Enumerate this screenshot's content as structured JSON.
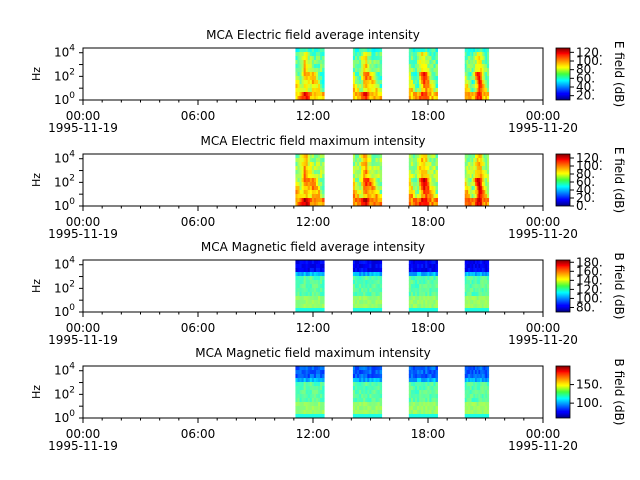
{
  "chart_data": [
    {
      "type": "heatmap",
      "title": "MCA  Electric field average intensity",
      "ylabel": "Hz",
      "y_scale": "log",
      "y_ticks": [
        {
          "exp": "0"
        },
        {
          "exp": "2"
        },
        {
          "exp": "4"
        }
      ],
      "x_ticks": [
        {
          "time": "00:00",
          "date": "1995-11-19"
        },
        {
          "time": "06:00",
          "date": ""
        },
        {
          "time": "12:00",
          "date": ""
        },
        {
          "time": "18:00",
          "date": ""
        },
        {
          "time": "00:00",
          "date": "1995-11-20"
        }
      ],
      "x_range": [
        "1995-11-19 00:00",
        "1995-11-20 00:00"
      ],
      "colorbar": {
        "label": "E field (dB)",
        "ticks": [
          "20.",
          "40.",
          "60.",
          "80.",
          "100.",
          "120."
        ],
        "range": [
          10,
          130
        ],
        "colormap": "jet"
      },
      "data_segments": [
        {
          "start": "1995-11-19 11:05",
          "end": "1995-11-19 12:35"
        },
        {
          "start": "1995-11-19 14:05",
          "end": "1995-11-19 15:35"
        },
        {
          "start": "1995-11-19 17:00",
          "end": "1995-11-19 18:30"
        },
        {
          "start": "1995-11-19 19:55",
          "end": "1995-11-19 21:10"
        }
      ],
      "profile": "electric_avg"
    },
    {
      "type": "heatmap",
      "title": "MCA  Electric field maximum intensity",
      "ylabel": "Hz",
      "y_scale": "log",
      "y_ticks": [
        {
          "exp": "0"
        },
        {
          "exp": "2"
        },
        {
          "exp": "4"
        }
      ],
      "x_ticks": [
        {
          "time": "00:00",
          "date": "1995-11-19"
        },
        {
          "time": "06:00",
          "date": ""
        },
        {
          "time": "12:00",
          "date": ""
        },
        {
          "time": "18:00",
          "date": ""
        },
        {
          "time": "00:00",
          "date": "1995-11-20"
        }
      ],
      "x_range": [
        "1995-11-19 00:00",
        "1995-11-20 00:00"
      ],
      "colorbar": {
        "label": "E field (dB)",
        "ticks": [
          "0.",
          "20.",
          "40.",
          "60.",
          "80.",
          "100.",
          "120."
        ],
        "range": [
          0,
          130
        ],
        "colormap": "jet"
      },
      "data_segments": [
        {
          "start": "1995-11-19 11:05",
          "end": "1995-11-19 12:35"
        },
        {
          "start": "1995-11-19 14:05",
          "end": "1995-11-19 15:35"
        },
        {
          "start": "1995-11-19 17:00",
          "end": "1995-11-19 18:30"
        },
        {
          "start": "1995-11-19 19:55",
          "end": "1995-11-19 21:10"
        }
      ],
      "profile": "electric_max"
    },
    {
      "type": "heatmap",
      "title": "MCA  Magnetic field average intensity",
      "ylabel": "Hz",
      "y_scale": "log",
      "y_ticks": [
        {
          "exp": "0"
        },
        {
          "exp": "2"
        },
        {
          "exp": "4"
        }
      ],
      "x_ticks": [
        {
          "time": "00:00",
          "date": "1995-11-19"
        },
        {
          "time": "06:00",
          "date": ""
        },
        {
          "time": "12:00",
          "date": ""
        },
        {
          "time": "18:00",
          "date": ""
        },
        {
          "time": "00:00",
          "date": "1995-11-20"
        }
      ],
      "x_range": [
        "1995-11-19 00:00",
        "1995-11-20 00:00"
      ],
      "colorbar": {
        "label": "B field (dB)",
        "ticks": [
          "80.",
          "100.",
          "120.",
          "140.",
          "160.",
          "180."
        ],
        "range": [
          70,
          185
        ],
        "colormap": "jet"
      },
      "data_segments": [
        {
          "start": "1995-11-19 11:05",
          "end": "1995-11-19 12:35"
        },
        {
          "start": "1995-11-19 14:05",
          "end": "1995-11-19 15:35"
        },
        {
          "start": "1995-11-19 17:00",
          "end": "1995-11-19 18:30"
        },
        {
          "start": "1995-11-19 19:55",
          "end": "1995-11-19 21:10"
        }
      ],
      "profile": "magnetic_avg"
    },
    {
      "type": "heatmap",
      "title": "MCA  Magnetic field maximum intensity",
      "ylabel": "Hz",
      "y_scale": "log",
      "y_ticks": [
        {
          "exp": "0"
        },
        {
          "exp": "2"
        },
        {
          "exp": "4"
        }
      ],
      "x_ticks": [
        {
          "time": "00:00",
          "date": "1995-11-19"
        },
        {
          "time": "06:00",
          "date": ""
        },
        {
          "time": "12:00",
          "date": ""
        },
        {
          "time": "18:00",
          "date": ""
        },
        {
          "time": "00:00",
          "date": "1995-11-20"
        }
      ],
      "x_range": [
        "1995-11-19 00:00",
        "1995-11-20 00:00"
      ],
      "colorbar": {
        "label": "B field (dB)",
        "ticks": [
          "100.",
          "150."
        ],
        "range": [
          60,
          200
        ],
        "colormap": "jet"
      },
      "data_segments": [
        {
          "start": "1995-11-19 11:05",
          "end": "1995-11-19 12:35"
        },
        {
          "start": "1995-11-19 14:05",
          "end": "1995-11-19 15:35"
        },
        {
          "start": "1995-11-19 17:00",
          "end": "1995-11-19 18:30"
        },
        {
          "start": "1995-11-19 19:55",
          "end": "1995-11-19 21:10"
        }
      ],
      "profile": "magnetic_max"
    }
  ]
}
